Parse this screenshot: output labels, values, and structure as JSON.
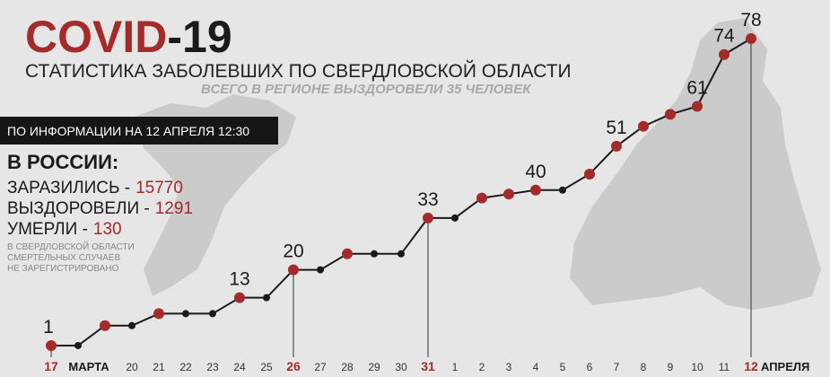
{
  "header": {
    "title_part1": "COVID",
    "title_part2": "-19",
    "subtitle": "СТАТИСТИКА ЗАБОЛЕВШИХ ПО СВЕРДЛОВСКОЙ ОБЛАСТИ",
    "recovered_note": "ВСЕГО В РЕГИОНЕ ВЫЗДОРОВЕЛИ 35 ЧЕЛОВЕК"
  },
  "info": {
    "banner": "ПО ИНФОРМАЦИИ НА 12 АПРЕЛЯ 12:30",
    "heading": "В РОССИИ:",
    "stats": [
      {
        "label": "ЗАРАЗИЛИСЬ -",
        "value": "15770"
      },
      {
        "label": "ВЫЗДОРОВЕЛИ -",
        "value": "1291"
      },
      {
        "label": "УМЕРЛИ -",
        "value": "130"
      }
    ],
    "note": [
      "В СВЕРДЛОВСКОЙ ОБЛАСТИ",
      "СМЕРТЕЛЬНЫХ СЛУЧАЕВ",
      "НЕ ЗАРЕГИСТРИРОВАНО"
    ]
  },
  "chart_data": {
    "type": "line",
    "categories": [
      "17",
      null,
      null,
      "20",
      "21",
      "22",
      "23",
      "24",
      "25",
      "26",
      "27",
      "28",
      "29",
      "30",
      "31",
      "1",
      "2",
      "3",
      "4",
      "5",
      "6",
      "7",
      "8",
      "9",
      "10",
      "11",
      "12"
    ],
    "month_labels": [
      "МАРТА",
      "АПРЕЛЯ"
    ],
    "highlight": [
      0,
      9,
      14,
      26
    ],
    "values": [
      1,
      1,
      6,
      6,
      9,
      9,
      9,
      13,
      13,
      20,
      20,
      24,
      24,
      24,
      33,
      33,
      38,
      39,
      40,
      40,
      44,
      51,
      56,
      59,
      61,
      74,
      78
    ],
    "value_labels": [
      "1",
      null,
      null,
      null,
      null,
      null,
      null,
      "13",
      null,
      "20",
      null,
      null,
      null,
      null,
      "33",
      null,
      null,
      null,
      "40",
      null,
      null,
      "51",
      null,
      null,
      "61",
      "74",
      "78"
    ],
    "ylim": [
      0,
      80
    ],
    "color": "#1a1a1a",
    "change_color": "#a52a2a"
  }
}
